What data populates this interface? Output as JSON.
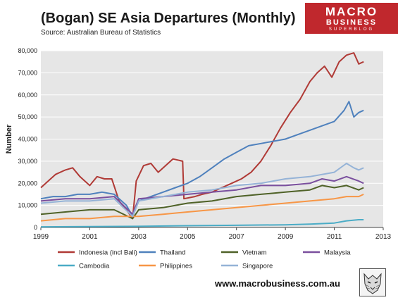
{
  "header": {
    "title": "(Bogan) SE Asia Departures (Monthly)",
    "source": "Source: Australian Bureau of Statistics"
  },
  "logo": {
    "line1": "MACRO",
    "line2": "BUSINESS",
    "line3": "SUPERBLOG"
  },
  "footer": {
    "website": "www.macrobusiness.com.au"
  },
  "chart_data": {
    "type": "line",
    "title": "(Bogan) SE Asia Departures (Monthly)",
    "xlabel": "",
    "ylabel": "Number",
    "xlim": [
      1999,
      2013
    ],
    "ylim": [
      0,
      80000
    ],
    "x_ticks": [
      1999,
      2001,
      2003,
      2005,
      2007,
      2009,
      2011,
      2013
    ],
    "y_ticks": [
      0,
      10000,
      20000,
      30000,
      40000,
      50000,
      60000,
      70000,
      80000
    ],
    "y_tick_labels": [
      "0",
      "10,000",
      "20,000",
      "30,000",
      "40,000",
      "50,000",
      "60,000",
      "70,000",
      "80,000"
    ],
    "grid": "horizontal",
    "plot_background": "#e6e6e6",
    "legend_position": "bottom",
    "series": [
      {
        "name": "Indonesia (incl Bali)",
        "color": "#b03a36",
        "x": [
          1999.0,
          1999.3,
          1999.6,
          2000.0,
          2000.3,
          2000.6,
          2001.0,
          2001.3,
          2001.6,
          2001.9,
          2002.2,
          2002.5,
          2002.75,
          2002.9,
          2003.2,
          2003.5,
          2003.8,
          2004.1,
          2004.4,
          2004.8,
          2004.85,
          2005.3,
          2005.6,
          2006.0,
          2006.4,
          2006.8,
          2007.2,
          2007.6,
          2008.0,
          2008.4,
          2008.8,
          2009.2,
          2009.6,
          2010.0,
          2010.3,
          2010.6,
          2010.9,
          2011.2,
          2011.5,
          2011.8,
          2012.0,
          2012.2
        ],
        "y": [
          18000,
          21000,
          24000,
          26000,
          27000,
          23000,
          19000,
          23000,
          22000,
          22000,
          12000,
          8000,
          4000,
          21000,
          28000,
          29000,
          25000,
          28000,
          31000,
          30000,
          13000,
          14000,
          15000,
          16000,
          18000,
          20000,
          22000,
          25000,
          30000,
          37000,
          45000,
          52000,
          58000,
          66000,
          70000,
          73000,
          68000,
          75000,
          78000,
          79000,
          74000,
          75000
        ]
      },
      {
        "name": "Thailand",
        "color": "#4f81bd",
        "x": [
          1999.0,
          1999.5,
          2000.0,
          2000.5,
          2001.0,
          2001.5,
          2002.0,
          2002.5,
          2002.75,
          2003.0,
          2003.5,
          2004.0,
          2004.5,
          2005.0,
          2005.5,
          2006.0,
          2006.5,
          2007.0,
          2007.5,
          2008.0,
          2008.5,
          2009.0,
          2009.5,
          2010.0,
          2010.5,
          2011.0,
          2011.4,
          2011.6,
          2011.8,
          2012.0,
          2012.2
        ],
        "y": [
          13000,
          14000,
          14000,
          15000,
          15000,
          16000,
          15000,
          10000,
          5000,
          12000,
          14000,
          16000,
          18000,
          20000,
          23000,
          27000,
          31000,
          34000,
          37000,
          38000,
          39000,
          40000,
          42000,
          44000,
          46000,
          48000,
          53000,
          57000,
          50000,
          52000,
          53000
        ]
      },
      {
        "name": "Vietnam",
        "color": "#4f6228",
        "x": [
          1999.0,
          2000.0,
          2001.0,
          2002.0,
          2002.75,
          2003.0,
          2004.0,
          2005.0,
          2006.0,
          2007.0,
          2008.0,
          2009.0,
          2010.0,
          2010.5,
          2011.0,
          2011.5,
          2012.0,
          2012.2
        ],
        "y": [
          6000,
          7000,
          8000,
          8000,
          4000,
          8000,
          9000,
          11000,
          12000,
          14000,
          15000,
          16000,
          17000,
          19000,
          18000,
          19000,
          17000,
          18000
        ]
      },
      {
        "name": "Malaysia",
        "color": "#7a4f9e",
        "x": [
          1999.0,
          2000.0,
          2001.0,
          2002.0,
          2002.75,
          2003.0,
          2004.0,
          2005.0,
          2006.0,
          2007.0,
          2008.0,
          2009.0,
          2010.0,
          2010.5,
          2011.0,
          2011.5,
          2012.0,
          2012.2
        ],
        "y": [
          12000,
          13000,
          13000,
          14000,
          6000,
          13000,
          14000,
          15000,
          16000,
          17000,
          19000,
          19000,
          20000,
          22000,
          21000,
          23000,
          21000,
          20000
        ]
      },
      {
        "name": "Cambodia",
        "color": "#4bacc6",
        "x": [
          1999.0,
          2001.0,
          2003.0,
          2005.0,
          2007.0,
          2009.0,
          2010.0,
          2011.0,
          2011.5,
          2012.0,
          2012.2
        ],
        "y": [
          300,
          400,
          500,
          800,
          1000,
          1200,
          1500,
          2000,
          3000,
          3500,
          3500
        ]
      },
      {
        "name": "Philippines",
        "color": "#f79646",
        "x": [
          1999.0,
          2000.0,
          2001.0,
          2002.0,
          2003.0,
          2004.0,
          2005.0,
          2006.0,
          2007.0,
          2008.0,
          2009.0,
          2010.0,
          2011.0,
          2011.5,
          2012.0,
          2012.2
        ],
        "y": [
          3000,
          4000,
          4000,
          5000,
          5000,
          6000,
          7000,
          8000,
          9000,
          10000,
          11000,
          12000,
          13000,
          14000,
          14000,
          15000
        ]
      },
      {
        "name": "Singapore",
        "color": "#95b3d7",
        "x": [
          1999.0,
          2000.0,
          2001.0,
          2002.0,
          2002.75,
          2003.0,
          2004.0,
          2005.0,
          2006.0,
          2007.0,
          2008.0,
          2008.5,
          2009.0,
          2010.0,
          2011.0,
          2011.5,
          2011.8,
          2012.0,
          2012.2
        ],
        "y": [
          11000,
          12000,
          12000,
          13000,
          5000,
          12000,
          14000,
          16000,
          17000,
          19000,
          20000,
          21000,
          22000,
          23000,
          25000,
          29000,
          27000,
          26000,
          27000
        ]
      }
    ]
  }
}
